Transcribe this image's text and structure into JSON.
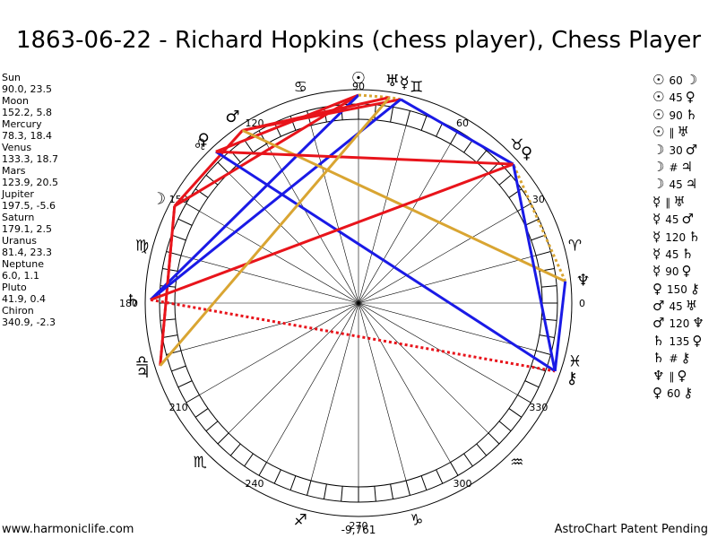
{
  "title": "1863-06-22 - Richard Hopkins (chess player), Chess Player",
  "planets": [
    {
      "name": "Sun",
      "value": "90.0, 23.5",
      "lon": 90.0,
      "glyph": "☉",
      "glyph_name": "sun-icon"
    },
    {
      "name": "Moon",
      "value": "152.2, 5.8",
      "lon": 152.2,
      "glyph": "☽",
      "glyph_name": "moon-icon"
    },
    {
      "name": "Mercury",
      "value": "78.3, 18.4",
      "lon": 78.3,
      "glyph": "☿",
      "glyph_name": "mercury-icon"
    },
    {
      "name": "Venus",
      "value": "133.3, 18.7",
      "lon": 133.3,
      "glyph": "♀",
      "glyph_name": "venus-icon"
    },
    {
      "name": "Mars",
      "value": "123.9, 20.5",
      "lon": 123.9,
      "glyph": "♂",
      "glyph_name": "mars-icon"
    },
    {
      "name": "Jupiter",
      "value": "197.5, -5.6",
      "lon": 197.5,
      "glyph": "♃",
      "glyph_name": "jupiter-icon"
    },
    {
      "name": "Saturn",
      "value": "179.1, 2.5",
      "lon": 179.1,
      "glyph": "♄",
      "glyph_name": "saturn-icon"
    },
    {
      "name": "Uranus",
      "value": "81.4, 23.3",
      "lon": 81.4,
      "glyph": "♅",
      "glyph_name": "uranus-icon"
    },
    {
      "name": "Neptune",
      "value": "6.0, 1.1",
      "lon": 6.0,
      "glyph": "♆",
      "glyph_name": "neptune-icon"
    },
    {
      "name": "Pluto",
      "value": "41.9, 0.4",
      "lon": 41.9,
      "glyph": "♀",
      "glyph_name": "pluto-icon"
    },
    {
      "name": "Chiron",
      "value": "340.9, -2.3",
      "lon": 340.9,
      "glyph": "⚷",
      "glyph_name": "chiron-icon"
    }
  ],
  "aspects": [
    {
      "p1": "☉",
      "angle": "60",
      "p2": "☽"
    },
    {
      "p1": "☉",
      "angle": "45",
      "p2": "♀"
    },
    {
      "p1": "☉",
      "angle": "90",
      "p2": "♄"
    },
    {
      "p1": "☉",
      "angle": "∥",
      "p2": "♅"
    },
    {
      "p1": "☽",
      "angle": "30",
      "p2": "♂"
    },
    {
      "p1": "☽",
      "angle": "#",
      "p2": "♃"
    },
    {
      "p1": "☽",
      "angle": "45",
      "p2": "♃"
    },
    {
      "p1": "☿",
      "angle": "∥",
      "p2": "♅"
    },
    {
      "p1": "☿",
      "angle": "45",
      "p2": "♂"
    },
    {
      "p1": "☿",
      "angle": "120",
      "p2": "♄"
    },
    {
      "p1": "☿",
      "angle": "45",
      "p2": "♄"
    },
    {
      "p1": "☿",
      "angle": "90",
      "p2": "♀"
    },
    {
      "p1": "♀",
      "angle": "150",
      "p2": "⚷"
    },
    {
      "p1": "♂",
      "angle": "45",
      "p2": "♅"
    },
    {
      "p1": "♂",
      "angle": "120",
      "p2": "♆"
    },
    {
      "p1": "♄",
      "angle": "135",
      "p2": "♀"
    },
    {
      "p1": "♄",
      "angle": "#",
      "p2": "⚷"
    },
    {
      "p1": "♆",
      "angle": "∥",
      "p2": "♀"
    },
    {
      "p1": "♀",
      "angle": "60",
      "p2": "⚷"
    }
  ],
  "degree_labels": [
    "0",
    "30",
    "60",
    "90",
    "120",
    "150",
    "180",
    "210",
    "240",
    "270",
    "300",
    "330"
  ],
  "zodiac_glyphs": [
    "♈",
    "♉",
    "♊",
    "♋",
    "♌",
    "♍",
    "♎",
    "♏",
    "♐",
    "♑",
    "♒",
    "♓"
  ],
  "aspect_lines": [
    {
      "a": 0,
      "b": 1,
      "color": "#e8141b",
      "dash": false
    },
    {
      "a": 0,
      "b": 3,
      "color": "#e8141b",
      "dash": false
    },
    {
      "a": 0,
      "b": 6,
      "color": "#1a1ae6",
      "dash": false
    },
    {
      "a": 0,
      "b": 7,
      "color": "#d9a532",
      "dash": true
    },
    {
      "a": 1,
      "b": 4,
      "color": "#e8141b",
      "dash": false
    },
    {
      "a": 1,
      "b": 5,
      "color": "#e8141b",
      "dash": true
    },
    {
      "a": 1,
      "b": 5,
      "color": "#e8141b",
      "dash": false
    },
    {
      "a": 2,
      "b": 7,
      "color": "#d9a532",
      "dash": true
    },
    {
      "a": 2,
      "b": 4,
      "color": "#e8141b",
      "dash": false
    },
    {
      "a": 2,
      "b": 6,
      "color": "#1a1ae6",
      "dash": false
    },
    {
      "a": 2,
      "b": 9,
      "color": "#1a1ae6",
      "dash": false
    },
    {
      "a": 3,
      "b": 10,
      "color": "#1a1ae6",
      "dash": false
    },
    {
      "a": 4,
      "b": 7,
      "color": "#e8141b",
      "dash": false
    },
    {
      "a": 4,
      "b": 8,
      "color": "#d9a532",
      "dash": false
    },
    {
      "a": 6,
      "b": 9,
      "color": "#e8141b",
      "dash": false
    },
    {
      "a": 6,
      "b": 10,
      "color": "#e8141b",
      "dash": true
    },
    {
      "a": 8,
      "b": 9,
      "color": "#d9a532",
      "dash": true
    },
    {
      "a": 9,
      "b": 10,
      "color": "#1a1ae6",
      "dash": false
    },
    {
      "a": 3,
      "b": 9,
      "color": "#e8141b",
      "dash": false
    },
    {
      "a": 7,
      "b": 5,
      "color": "#d9a532",
      "dash": false
    },
    {
      "a": 8,
      "b": 10,
      "color": "#1a1ae6",
      "dash": false
    }
  ],
  "footer": {
    "left": "www.harmoniclife.com",
    "center": "-9,761",
    "right": "AstroChart Patent Pending"
  }
}
